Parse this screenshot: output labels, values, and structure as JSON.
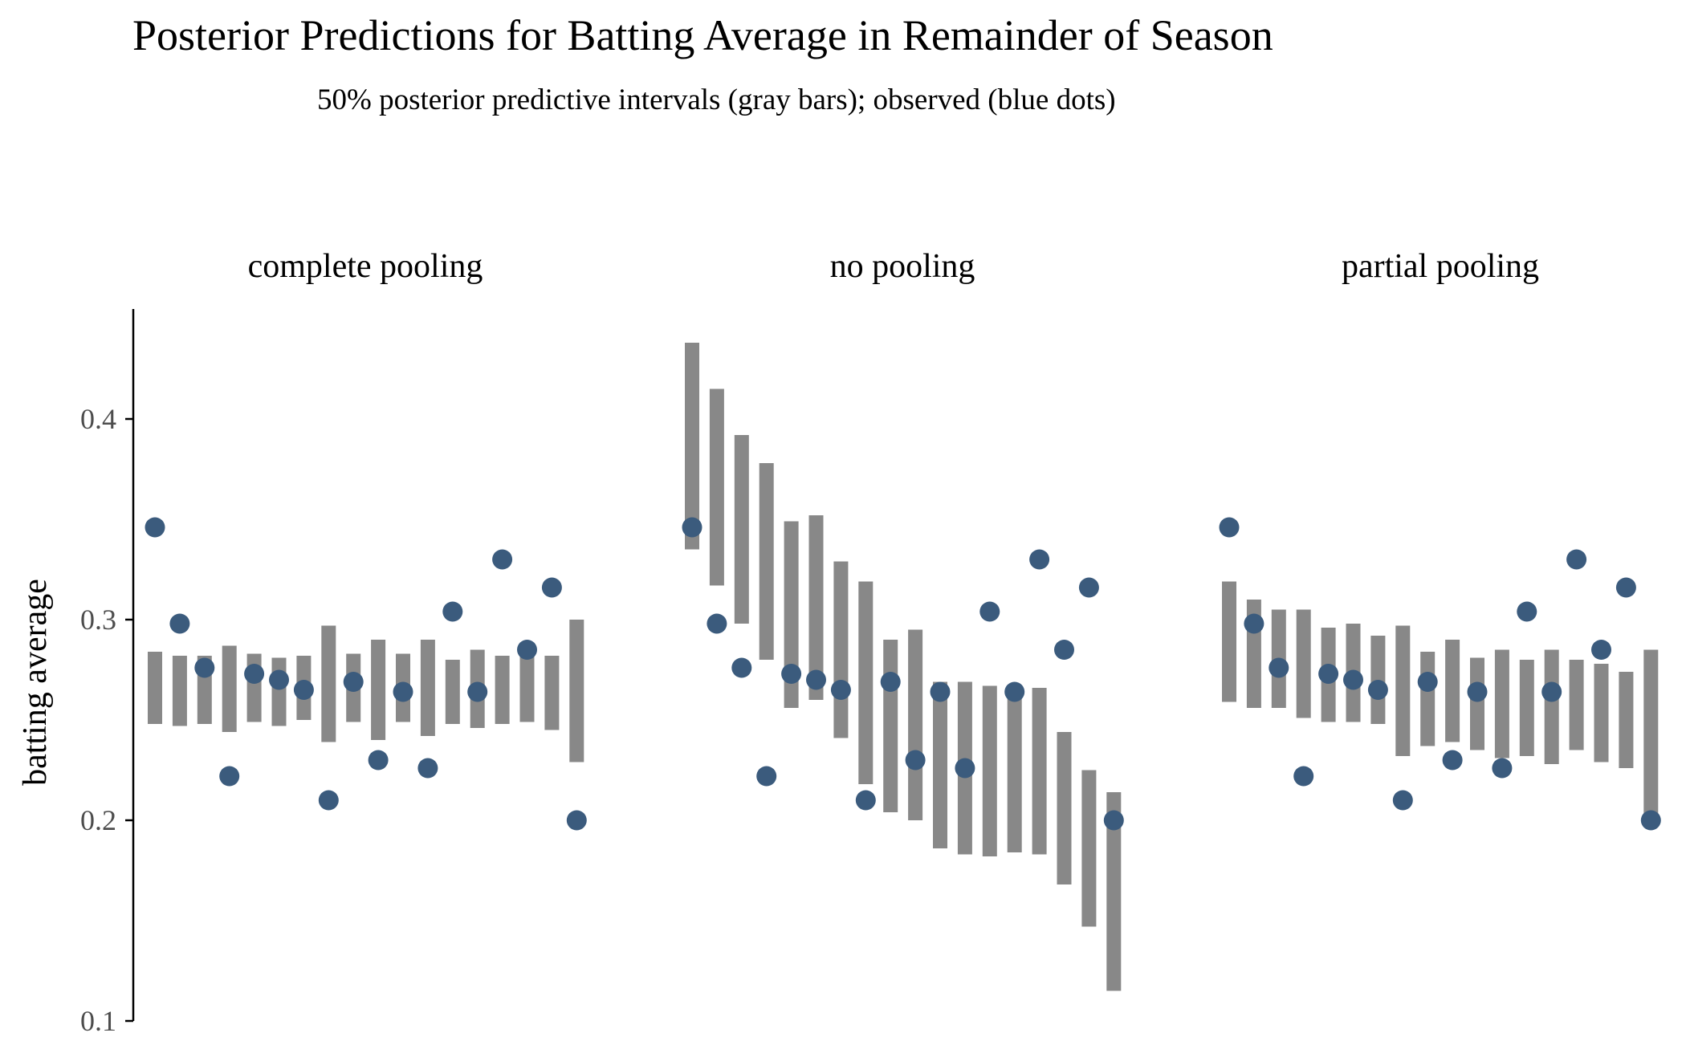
{
  "chart_data": {
    "type": "interval-dot",
    "title": "Posterior Predictions for Batting Average in Remainder of Season",
    "subtitle": "50% posterior predictive intervals (gray bars); observed (blue dots)",
    "ylabel": "batting average",
    "xlabel": "",
    "ylim": [
      0.1,
      0.45
    ],
    "yticks": [
      0.1,
      0.2,
      0.3,
      0.4
    ],
    "ytick_labels": [
      "0.1",
      "0.2",
      "0.3",
      "0.4"
    ],
    "grid": false,
    "legend": "none",
    "colors": {
      "interval": "#888888",
      "observed": "#3b5b7d",
      "axis": "#000000"
    },
    "panels": [
      {
        "name": "complete pooling",
        "observed": [
          0.346,
          0.298,
          0.276,
          0.222,
          0.273,
          0.27,
          0.265,
          0.21,
          0.269,
          0.23,
          0.264,
          0.226,
          0.304,
          0.264,
          0.33,
          0.285,
          0.316,
          0.2
        ],
        "interval_low": [
          0.248,
          0.247,
          0.248,
          0.244,
          0.249,
          0.247,
          0.25,
          0.239,
          0.249,
          0.24,
          0.249,
          0.242,
          0.248,
          0.246,
          0.248,
          0.249,
          0.245,
          0.229
        ],
        "interval_high": [
          0.284,
          0.282,
          0.282,
          0.287,
          0.283,
          0.281,
          0.282,
          0.297,
          0.283,
          0.29,
          0.283,
          0.29,
          0.28,
          0.285,
          0.282,
          0.282,
          0.282,
          0.3
        ]
      },
      {
        "name": "no pooling",
        "observed": [
          0.346,
          0.298,
          0.276,
          0.222,
          0.273,
          0.27,
          0.265,
          0.21,
          0.269,
          0.23,
          0.264,
          0.226,
          0.304,
          0.264,
          0.33,
          0.285,
          0.316,
          0.2
        ],
        "interval_low": [
          0.335,
          0.317,
          0.298,
          0.28,
          0.256,
          0.26,
          0.241,
          0.218,
          0.204,
          0.2,
          0.186,
          0.183,
          0.182,
          0.184,
          0.183,
          0.168,
          0.147,
          0.115
        ],
        "interval_high": [
          0.438,
          0.415,
          0.392,
          0.378,
          0.349,
          0.352,
          0.329,
          0.319,
          0.29,
          0.295,
          0.269,
          0.269,
          0.267,
          0.267,
          0.266,
          0.244,
          0.225,
          0.214
        ]
      },
      {
        "name": "partial pooling",
        "observed": [
          0.346,
          0.298,
          0.276,
          0.222,
          0.273,
          0.27,
          0.265,
          0.21,
          0.269,
          0.23,
          0.264,
          0.226,
          0.304,
          0.264,
          0.33,
          0.285,
          0.316,
          0.2
        ],
        "interval_low": [
          0.259,
          0.256,
          0.256,
          0.251,
          0.249,
          0.249,
          0.248,
          0.232,
          0.237,
          0.239,
          0.235,
          0.231,
          0.232,
          0.228,
          0.235,
          0.229,
          0.226,
          0.2
        ],
        "interval_high": [
          0.319,
          0.31,
          0.305,
          0.305,
          0.296,
          0.298,
          0.292,
          0.297,
          0.284,
          0.29,
          0.281,
          0.285,
          0.28,
          0.285,
          0.28,
          0.278,
          0.274,
          0.285
        ]
      }
    ]
  }
}
